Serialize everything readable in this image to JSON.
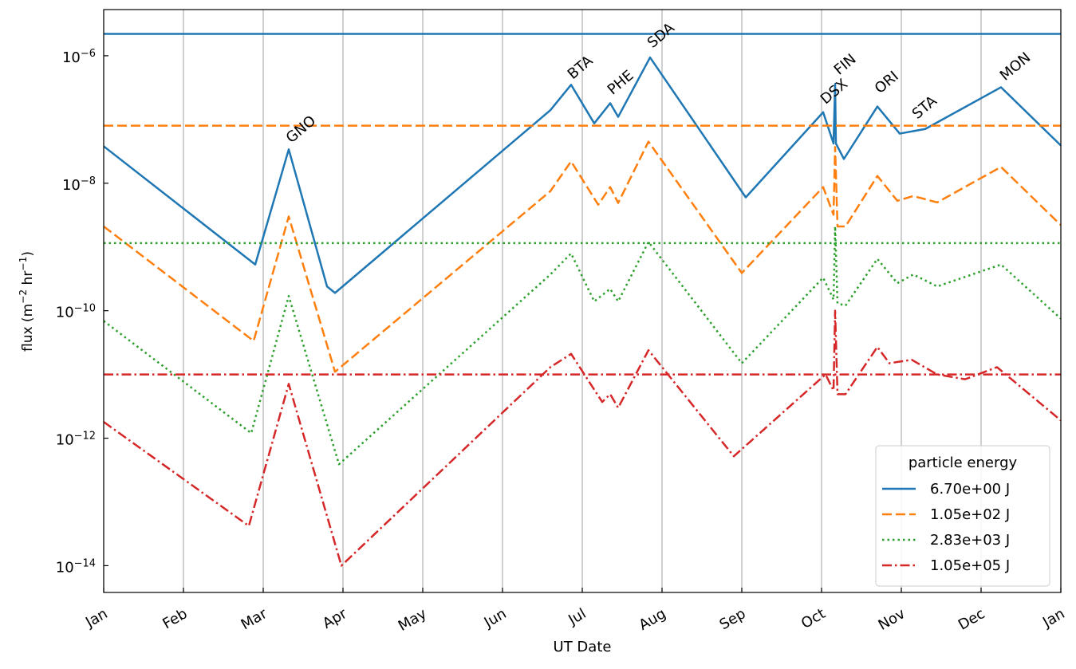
{
  "chart_data": {
    "type": "line",
    "x_label": "UT Date",
    "y_label": "flux (m−2 hr−1)",
    "xlim": [
      0,
      12
    ],
    "xticks": [
      {
        "value": 0,
        "label": "Jan"
      },
      {
        "value": 1,
        "label": "Feb"
      },
      {
        "value": 2,
        "label": "Mar"
      },
      {
        "value": 3,
        "label": "Apr"
      },
      {
        "value": 4,
        "label": "May"
      },
      {
        "value": 5,
        "label": "Jun"
      },
      {
        "value": 6,
        "label": "Jul"
      },
      {
        "value": 7,
        "label": "Aug"
      },
      {
        "value": 8,
        "label": "Sep"
      },
      {
        "value": 9,
        "label": "Oct"
      },
      {
        "value": 10,
        "label": "Nov"
      },
      {
        "value": 11,
        "label": "Dec"
      },
      {
        "value": 12,
        "label": "Jan"
      }
    ],
    "ylim": [
      3.8e-15,
      5.3e-06
    ],
    "y_scale": "log",
    "yticks": [
      {
        "value": 1e-14,
        "label": "10−14"
      },
      {
        "value": 1e-12,
        "label": "10−12"
      },
      {
        "value": 1e-10,
        "label": "10−10"
      },
      {
        "value": 1e-08,
        "label": "10−8"
      },
      {
        "value": 1e-06,
        "label": "10−6"
      }
    ],
    "x_grid": true,
    "legend_title": "particle energy",
    "legend_position": "lower right",
    "series": [
      {
        "name": "6.70e+00 J",
        "color": "#1f77b4",
        "dash": "solid",
        "reference": 2.2e-06,
        "x": [
          0,
          1.9,
          2.32,
          2.8,
          2.9,
          5.6,
          5.86,
          6.15,
          6.35,
          6.45,
          6.85,
          8.05,
          9.02,
          9.15,
          9.17,
          9.18,
          9.28,
          9.7,
          9.98,
          10.3,
          11.25,
          12
        ],
        "values": [
          3.8e-08,
          5.3e-10,
          3.4e-08,
          2.4e-10,
          1.9e-10,
          1.4e-07,
          3.5e-07,
          8.7e-08,
          1.8e-07,
          1.1e-07,
          9.4e-07,
          6e-09,
          1.3e-07,
          4.2e-08,
          3.6e-07,
          4.2e-08,
          2.4e-08,
          1.6e-07,
          6e-08,
          7.1e-08,
          3.2e-07,
          3.9e-08
        ]
      },
      {
        "name": "1.05e+02 J",
        "color": "#ff7f0e",
        "dash": "dashed",
        "reference": 8e-08,
        "x": [
          0,
          1.88,
          2.32,
          2.9,
          5.6,
          5.86,
          6.2,
          6.35,
          6.45,
          6.83,
          8.0,
          9.02,
          9.15,
          9.17,
          9.2,
          9.3,
          9.7,
          9.95,
          10.15,
          10.45,
          11.25,
          12
        ],
        "values": [
          2.1e-09,
          3.35e-11,
          3e-09,
          1.1e-11,
          7.5e-09,
          2.2e-08,
          4.6e-09,
          8.7e-09,
          4.9e-09,
          4.5e-08,
          3.9e-10,
          8.7e-09,
          3.2e-09,
          3.7e-08,
          2.1e-09,
          2.1e-09,
          1.3e-08,
          5.3e-09,
          6.3e-09,
          5e-09,
          1.8e-08,
          2.2e-09
        ]
      },
      {
        "name": "2.83e+03 J",
        "color": "#2ca02c",
        "dash": "dotted",
        "reference": 1.15e-09,
        "x": [
          0,
          1.85,
          2.32,
          2.95,
          5.6,
          5.86,
          6.15,
          6.35,
          6.45,
          6.83,
          8.0,
          9.02,
          9.15,
          9.17,
          9.2,
          9.3,
          9.7,
          9.95,
          10.15,
          10.45,
          11.25,
          12
        ],
        "values": [
          6.9e-11,
          1.2e-12,
          1.7e-10,
          3.9e-13,
          3.7e-10,
          7.9e-10,
          1.4e-10,
          2.2e-10,
          1.4e-10,
          1.2e-09,
          1.5e-11,
          3.3e-10,
          1.5e-10,
          2.1e-09,
          1.3e-10,
          1.2e-10,
          6.5e-10,
          2.7e-10,
          3.7e-10,
          2.4e-10,
          5.3e-10,
          7.5e-11
        ]
      },
      {
        "name": "1.05e+05 J",
        "color": "#d62728",
        "dash": "dashdot",
        "reference": 1e-11,
        "x": [
          0,
          1.82,
          2.32,
          2.98,
          5.6,
          5.86,
          6.25,
          6.35,
          6.45,
          6.83,
          7.9,
          9.05,
          9.15,
          9.17,
          9.2,
          9.3,
          9.7,
          9.85,
          10.13,
          10.45,
          10.8,
          11.2,
          12
        ],
        "values": [
          1.8e-12,
          4.2e-14,
          7.1e-12,
          1e-14,
          1.3e-11,
          2.1e-11,
          3.7e-12,
          4.9e-12,
          3e-12,
          2.4e-11,
          5.2e-13,
          1e-11,
          5.6e-12,
          1e-10,
          4.9e-12,
          4.9e-12,
          2.7e-11,
          1.5e-11,
          1.7e-11,
          1e-11,
          8.4e-12,
          1.3e-11,
          1.9e-12
        ]
      }
    ],
    "annotations": [
      {
        "text": "GNO",
        "x": 2.35,
        "y": 4.2e-08
      },
      {
        "text": "BTA",
        "x": 5.88,
        "y": 4.2e-07
      },
      {
        "text": "PHE",
        "x": 6.38,
        "y": 2.4e-07
      },
      {
        "text": "SDA",
        "x": 6.88,
        "y": 1.3e-06
      },
      {
        "text": "DSX",
        "x": 9.05,
        "y": 1.7e-07
      },
      {
        "text": "FIN",
        "x": 9.22,
        "y": 4.9e-07
      },
      {
        "text": "ORI",
        "x": 9.73,
        "y": 2.5e-07
      },
      {
        "text": "STA",
        "x": 10.2,
        "y": 1e-07
      },
      {
        "text": "MON",
        "x": 11.3,
        "y": 4e-07
      }
    ]
  }
}
